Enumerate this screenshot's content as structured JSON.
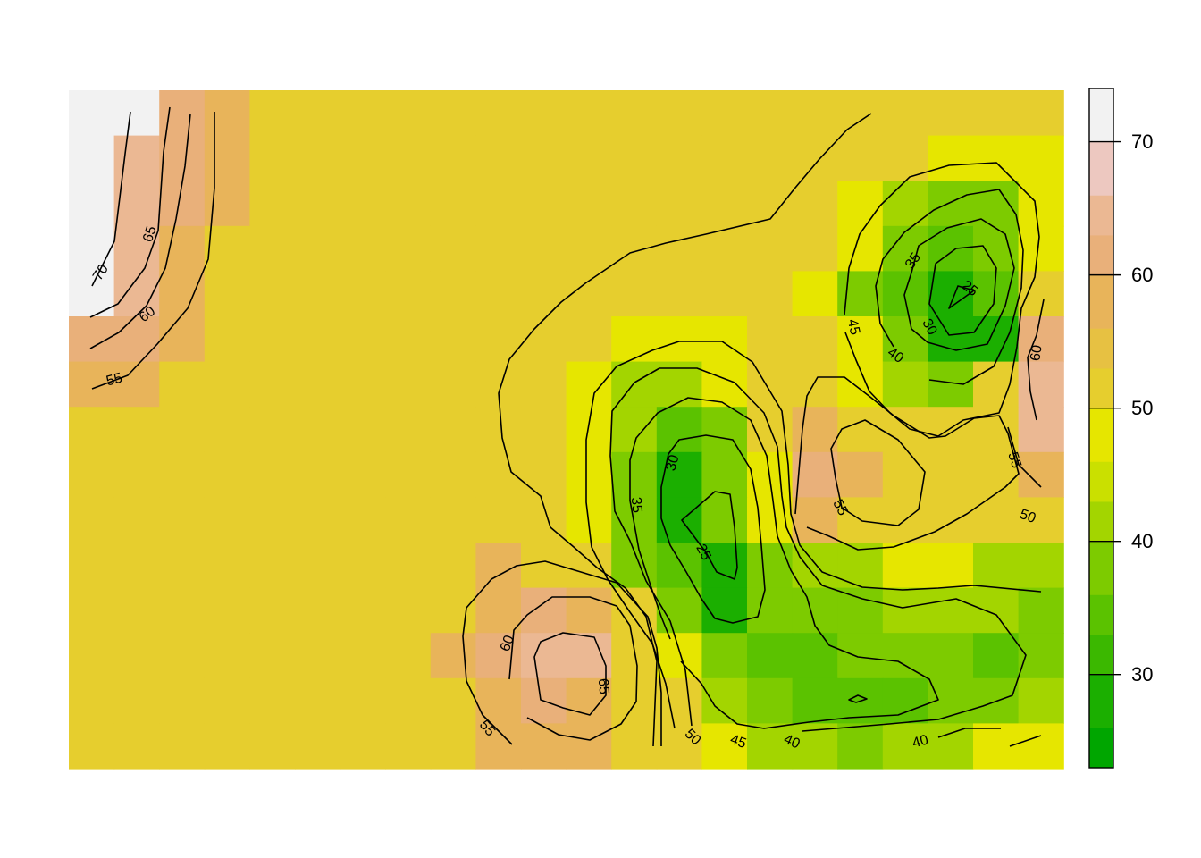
{
  "chart_data": {
    "type": "heatmap",
    "title": "",
    "xlabel": "",
    "ylabel": "",
    "grid": false,
    "legend_position": "right",
    "zlim": [
      23,
      74
    ],
    "colorbar": {
      "ticks": [
        30,
        40,
        50,
        60,
        70
      ],
      "tick_labels": [
        "30",
        "40",
        "50",
        "60",
        "70"
      ],
      "breaks": [
        23,
        26,
        30,
        33,
        36,
        40,
        43,
        46,
        50,
        53,
        56,
        60,
        63,
        66,
        70,
        74
      ],
      "colors": [
        "#00A600",
        "#1BAF00",
        "#3BB800",
        "#5BC200",
        "#7DCB00",
        "#A3D500",
        "#CAE000",
        "#E6E600",
        "#E6CE2E",
        "#E7C142",
        "#E8B45A",
        "#E9B07A",
        "#EBB893",
        "#EDC8C0",
        "#F2F2F2"
      ]
    },
    "grid_values": [
      [
        72,
        72,
        62,
        58,
        52,
        52,
        52,
        52,
        52,
        52,
        52,
        52,
        52,
        52,
        52,
        52,
        52,
        52,
        52,
        52,
        52,
        52
      ],
      [
        72,
        65,
        62,
        58,
        52,
        52,
        52,
        52,
        52,
        52,
        52,
        52,
        52,
        52,
        52,
        52,
        52,
        52,
        52,
        47,
        47,
        47
      ],
      [
        72,
        65,
        62,
        58,
        52,
        52,
        52,
        52,
        52,
        52,
        52,
        52,
        52,
        52,
        52,
        52,
        52,
        47,
        42,
        38,
        38,
        47
      ],
      [
        72,
        65,
        58,
        52,
        52,
        52,
        52,
        52,
        52,
        52,
        52,
        52,
        52,
        52,
        52,
        52,
        52,
        47,
        36,
        33,
        38,
        47
      ],
      [
        72,
        65,
        58,
        52,
        52,
        52,
        52,
        52,
        52,
        52,
        52,
        52,
        52,
        52,
        52,
        52,
        47,
        38,
        33,
        28,
        33,
        52
      ],
      [
        62,
        62,
        58,
        52,
        52,
        52,
        52,
        52,
        52,
        52,
        52,
        52,
        47,
        47,
        47,
        52,
        52,
        47,
        36,
        28,
        28,
        62
      ],
      [
        58,
        58,
        52,
        52,
        52,
        52,
        52,
        52,
        52,
        52,
        52,
        47,
        42,
        42,
        47,
        52,
        52,
        47,
        42,
        38,
        52,
        65
      ],
      [
        52,
        52,
        52,
        52,
        52,
        52,
        52,
        52,
        52,
        52,
        52,
        47,
        42,
        33,
        38,
        52,
        58,
        52,
        52,
        52,
        52,
        65
      ],
      [
        52,
        52,
        52,
        52,
        52,
        52,
        52,
        52,
        52,
        52,
        52,
        47,
        38,
        28,
        36,
        47,
        62,
        58,
        52,
        52,
        52,
        58
      ],
      [
        52,
        52,
        52,
        52,
        52,
        52,
        52,
        52,
        52,
        52,
        52,
        47,
        38,
        28,
        36,
        47,
        58,
        52,
        52,
        52,
        52,
        52
      ],
      [
        52,
        52,
        52,
        52,
        52,
        52,
        52,
        52,
        52,
        58,
        52,
        52,
        38,
        33,
        28,
        38,
        42,
        42,
        47,
        47,
        42,
        42
      ],
      [
        52,
        52,
        52,
        52,
        52,
        52,
        52,
        52,
        52,
        58,
        62,
        58,
        52,
        38,
        28,
        38,
        38,
        38,
        42,
        42,
        42,
        38
      ],
      [
        52,
        52,
        52,
        52,
        52,
        52,
        52,
        52,
        58,
        62,
        65,
        65,
        52,
        47,
        36,
        33,
        33,
        36,
        38,
        38,
        33,
        38
      ],
      [
        52,
        52,
        52,
        52,
        52,
        52,
        52,
        52,
        52,
        58,
        62,
        58,
        52,
        52,
        42,
        36,
        33,
        33,
        33,
        36,
        38,
        42
      ],
      [
        52,
        52,
        52,
        52,
        52,
        52,
        52,
        52,
        52,
        58,
        58,
        58,
        52,
        52,
        47,
        42,
        42,
        38,
        42,
        42,
        47,
        47
      ]
    ],
    "contour_labels": [
      {
        "text": "70",
        "angle": -57
      },
      {
        "text": "65",
        "angle": -72
      },
      {
        "text": "60",
        "angle": -38
      },
      {
        "text": "55",
        "angle": -15
      },
      {
        "text": "35",
        "angle": -55
      },
      {
        "text": "25",
        "angle": 38
      },
      {
        "text": "30",
        "angle": 62
      },
      {
        "text": "45",
        "angle": 78
      },
      {
        "text": "40",
        "angle": 35
      },
      {
        "text": "60",
        "angle": -82
      },
      {
        "text": "55",
        "angle": 72
      },
      {
        "text": "55",
        "angle": 62
      },
      {
        "text": "50",
        "angle": 20
      },
      {
        "text": "30",
        "angle": -75
      },
      {
        "text": "35",
        "angle": 85
      },
      {
        "text": "25",
        "angle": 62
      },
      {
        "text": "60",
        "angle": -70
      },
      {
        "text": "65",
        "angle": 85
      },
      {
        "text": "55",
        "angle": 50
      },
      {
        "text": "50",
        "angle": 45
      },
      {
        "text": "45",
        "angle": 20
      },
      {
        "text": "40",
        "angle": 25
      },
      {
        "text": "40",
        "angle": -15
      }
    ]
  }
}
